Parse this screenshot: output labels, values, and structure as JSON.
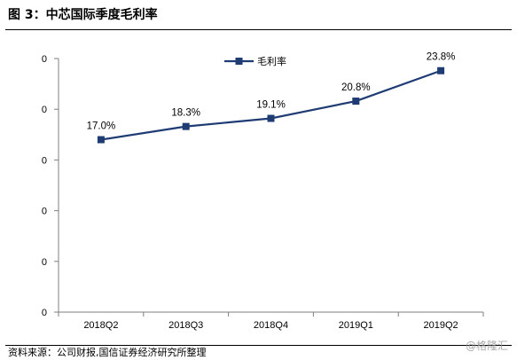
{
  "title": "图 3：中芯国际季度毛利率",
  "source": "资料来源：公司财报,国信证券经济研究所整理",
  "watermark": "@格隆汇",
  "chart_data": {
    "type": "line",
    "title": "",
    "xlabel": "",
    "ylabel": "",
    "categories": [
      "2018Q2",
      "2018Q3",
      "2018Q4",
      "2019Q1",
      "2019Q2"
    ],
    "series": [
      {
        "name": "毛利率",
        "values": [
          17.0,
          18.3,
          19.1,
          20.8,
          23.8
        ],
        "color": "#1f3b73"
      }
    ],
    "data_labels": [
      "17.0%",
      "18.3%",
      "19.1%",
      "20.8%",
      "23.8%"
    ],
    "y_tick_labels": [
      "0",
      "0",
      "0",
      "0",
      "0",
      "0"
    ],
    "ylim": [
      0,
      25
    ],
    "grid": false,
    "legend": "top-center"
  }
}
